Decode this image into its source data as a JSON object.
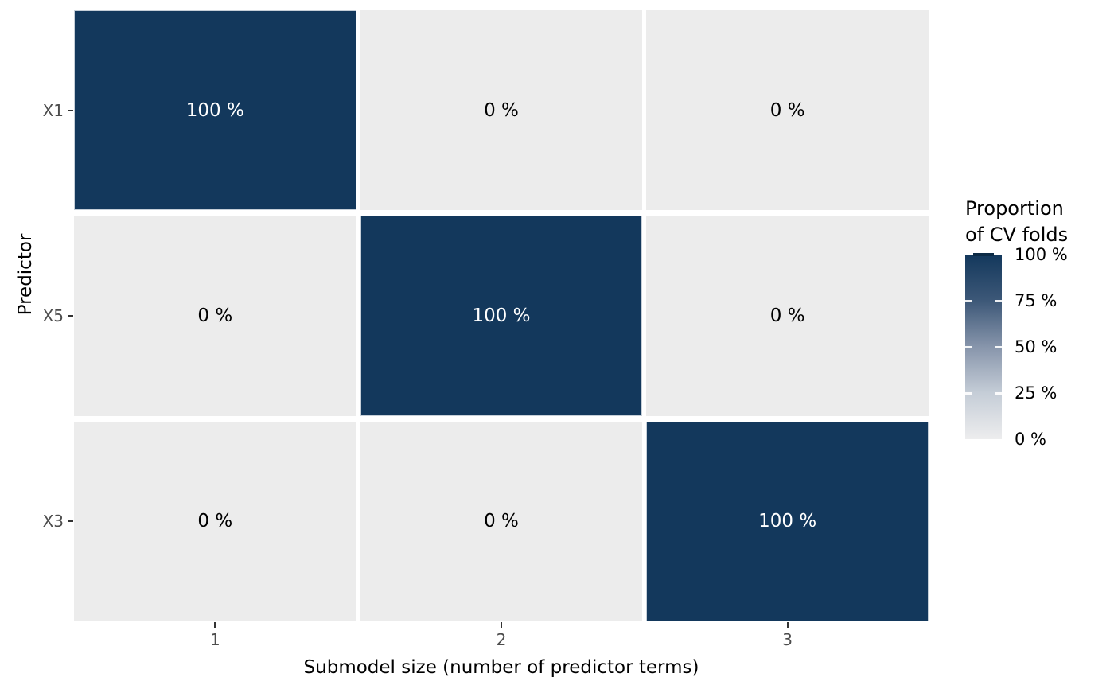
{
  "chart_data": {
    "type": "heatmap",
    "xlabel": "Submodel size (number of predictor terms)",
    "ylabel": "Predictor",
    "x_categories": [
      "1",
      "2",
      "3"
    ],
    "y_categories": [
      "X1",
      "X5",
      "X3"
    ],
    "values": [
      [
        100,
        0,
        0
      ],
      [
        0,
        100,
        0
      ],
      [
        0,
        0,
        100
      ]
    ],
    "cell_labels": [
      [
        "100 %",
        "0 %",
        "0 %"
      ],
      [
        "0 %",
        "100 %",
        "0 %"
      ],
      [
        "0 %",
        "0 %",
        "100 %"
      ]
    ],
    "legend": {
      "title_lines": [
        "Proportion",
        "of CV folds"
      ],
      "tick_labels": [
        "100 %",
        "75 %",
        "50 %",
        "25 %",
        "0 %"
      ],
      "tick_values": [
        100,
        75,
        50,
        25,
        0
      ],
      "position": "right"
    },
    "colors": {
      "high": "#13385c",
      "low": "#ececec",
      "legend_gradient": [
        "#13385c",
        "#3d5878",
        "#8795ab",
        "#c5cdd7",
        "#ededee"
      ],
      "cell_text_on_high": "#ffffff",
      "cell_text_on_low": "#000000",
      "tick_label": "#4d4d4d",
      "tick_mark": "#333333",
      "legend_cap": "#0d2b46"
    },
    "grid": false,
    "value_range": [
      0,
      100
    ]
  }
}
